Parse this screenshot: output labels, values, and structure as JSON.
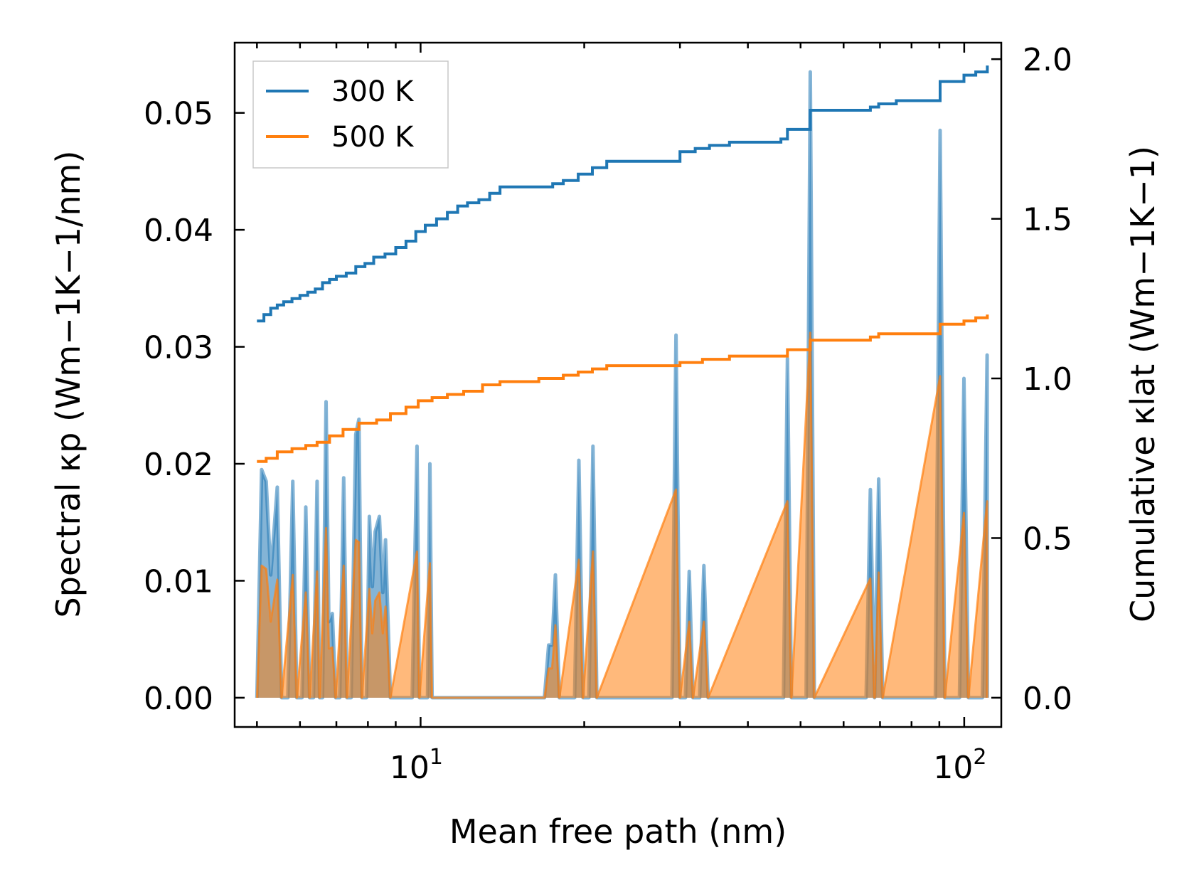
{
  "chart_data": {
    "type": "line",
    "xscale": "log",
    "xlabel": "Mean free path (nm)",
    "ylabel_left": "Spectral κp (Wm−1K−1/nm)",
    "ylabel_right": "Cumulative κlat (Wm−1K−1)",
    "xlim": [
      4.55,
      117
    ],
    "ylim_left": [
      -0.0025,
      0.056
    ],
    "ylim_right": [
      -0.0916,
      2.0516
    ],
    "x_ticks": [
      {
        "value": 10,
        "base": "10",
        "exp": "1"
      },
      {
        "value": 100,
        "base": "10",
        "exp": "2"
      }
    ],
    "y_left_ticks": [
      {
        "value": 0.0,
        "label": "0.00"
      },
      {
        "value": 0.01,
        "label": "0.01"
      },
      {
        "value": 0.02,
        "label": "0.02"
      },
      {
        "value": 0.03,
        "label": "0.03"
      },
      {
        "value": 0.04,
        "label": "0.04"
      },
      {
        "value": 0.05,
        "label": "0.05"
      }
    ],
    "y_right_ticks": [
      {
        "value": 0.0,
        "label": "0.0"
      },
      {
        "value": 0.5,
        "label": "0.5"
      },
      {
        "value": 1.0,
        "label": "1.0"
      },
      {
        "value": 1.5,
        "label": "1.5"
      },
      {
        "value": 2.0,
        "label": "2.0"
      }
    ],
    "legend": {
      "location": "upper left",
      "entries": [
        {
          "label": "300 K",
          "color": "#1f77b4"
        },
        {
          "label": "500 K",
          "color": "#ff7f0e"
        }
      ]
    },
    "spectral_series": [
      {
        "name": "300 K",
        "color": "#1f77b4",
        "points": [
          [
            5.0,
            0.0
          ],
          [
            5.1,
            0.0195
          ],
          [
            5.2,
            0.0185
          ],
          [
            5.3,
            0.0105
          ],
          [
            5.45,
            0.018
          ],
          [
            5.55,
            0.0
          ],
          [
            5.7,
            0.0
          ],
          [
            5.82,
            0.0185
          ],
          [
            5.92,
            0.0
          ],
          [
            6.05,
            0.0
          ],
          [
            6.15,
            0.0163
          ],
          [
            6.25,
            0.0
          ],
          [
            6.35,
            0.0
          ],
          [
            6.45,
            0.0185
          ],
          [
            6.52,
            0.0
          ],
          [
            6.6,
            0.0
          ],
          [
            6.7,
            0.0253
          ],
          [
            6.78,
            0.0065
          ],
          [
            6.88,
            0.0072
          ],
          [
            6.98,
            0.0
          ],
          [
            7.1,
            0.0
          ],
          [
            7.22,
            0.0188
          ],
          [
            7.32,
            0.0
          ],
          [
            7.45,
            0.0
          ],
          [
            7.6,
            0.0225
          ],
          [
            7.7,
            0.0238
          ],
          [
            7.8,
            0.0
          ],
          [
            7.95,
            0.0
          ],
          [
            8.05,
            0.0155
          ],
          [
            8.15,
            0.0095
          ],
          [
            8.25,
            0.0142
          ],
          [
            8.4,
            0.0155
          ],
          [
            8.52,
            0.009
          ],
          [
            8.62,
            0.0135
          ],
          [
            8.8,
            0.0
          ],
          [
            9.0,
            0.0
          ],
          [
            9.05,
            0.0
          ],
          [
            9.15,
            0.0
          ],
          [
            9.4,
            0.0
          ],
          [
            9.55,
            0.0
          ],
          [
            9.65,
            0.0
          ],
          [
            9.85,
            0.0215
          ],
          [
            9.95,
            0.0
          ],
          [
            10.05,
            0.0
          ],
          [
            10.1,
            0.0
          ],
          [
            10.3,
            0.0
          ],
          [
            10.4,
            0.02
          ],
          [
            10.5,
            0.0
          ],
          [
            10.75,
            0.0
          ],
          [
            10.9,
            0.0
          ],
          [
            11.0,
            0.0
          ],
          [
            11.2,
            0.0
          ],
          [
            11.35,
            0.0
          ],
          [
            11.5,
            0.0
          ],
          [
            11.6,
            0.0
          ],
          [
            11.8,
            0.0
          ],
          [
            11.95,
            0.0
          ],
          [
            12.1,
            0.0
          ],
          [
            12.3,
            0.0
          ],
          [
            12.4,
            0.0
          ],
          [
            12.55,
            0.0
          ],
          [
            12.65,
            0.0
          ],
          [
            12.9,
            0.0
          ],
          [
            13.1,
            0.0
          ],
          [
            13.2,
            0.0
          ],
          [
            13.4,
            0.0
          ],
          [
            13.6,
            0.0
          ],
          [
            13.8,
            0.0
          ],
          [
            14.0,
            0.0
          ],
          [
            14.2,
            0.0
          ],
          [
            14.4,
            0.0
          ],
          [
            16.9,
            0.0
          ],
          [
            17.2,
            0.0045
          ],
          [
            17.45,
            0.0045
          ],
          [
            17.7,
            0.0105
          ],
          [
            18.0,
            0.0
          ],
          [
            19.2,
            0.0
          ],
          [
            19.55,
            0.0203
          ],
          [
            19.9,
            0.0
          ],
          [
            20.4,
            0.0
          ],
          [
            20.75,
            0.0215
          ],
          [
            21.1,
            0.0
          ],
          [
            29.0,
            0.0
          ],
          [
            29.5,
            0.031
          ],
          [
            30.0,
            0.0
          ],
          [
            30.7,
            0.0
          ],
          [
            31.2,
            0.0108
          ],
          [
            31.7,
            0.0
          ],
          [
            32.6,
            0.0
          ],
          [
            33.2,
            0.0113
          ],
          [
            33.8,
            0.0
          ],
          [
            46.5,
            0.0
          ],
          [
            47.3,
            0.029
          ],
          [
            48.1,
            0.0
          ],
          [
            51.2,
            0.0
          ],
          [
            52.1,
            0.0535
          ],
          [
            53.0,
            0.0
          ],
          [
            66.0,
            0.0
          ],
          [
            67.2,
            0.0178
          ],
          [
            68.4,
            0.0
          ],
          [
            69.6,
            0.0187
          ],
          [
            70.8,
            0.0
          ],
          [
            88.5,
            0.0
          ],
          [
            90.3,
            0.0485
          ],
          [
            92.1,
            0.0
          ],
          [
            98.0,
            0.0
          ],
          [
            99.9,
            0.0273
          ],
          [
            101.8,
            0.0
          ],
          [
            108.0,
            0.0
          ],
          [
            110.2,
            0.0293
          ],
          [
            110.25,
            0.0
          ]
        ]
      },
      {
        "name": "500 K",
        "color": "#ff7f0e",
        "points": [
          [
            5.0,
            0.0
          ],
          [
            5.1,
            0.0113
          ],
          [
            5.2,
            0.011
          ],
          [
            5.3,
            0.0065
          ],
          [
            5.45,
            0.0101
          ],
          [
            5.55,
            0.0
          ],
          [
            5.82,
            0.0105
          ],
          [
            5.92,
            0.0
          ],
          [
            6.15,
            0.009
          ],
          [
            6.25,
            0.0
          ],
          [
            6.45,
            0.0108
          ],
          [
            6.52,
            0.0
          ],
          [
            6.7,
            0.0145
          ],
          [
            6.78,
            0.0042
          ],
          [
            6.88,
            0.0043
          ],
          [
            6.98,
            0.0
          ],
          [
            7.22,
            0.0113
          ],
          [
            7.32,
            0.0
          ],
          [
            7.6,
            0.0135
          ],
          [
            7.7,
            0.0133
          ],
          [
            7.8,
            0.0
          ],
          [
            8.05,
            0.0093
          ],
          [
            8.15,
            0.0055
          ],
          [
            8.25,
            0.0083
          ],
          [
            8.4,
            0.009
          ],
          [
            8.52,
            0.0055
          ],
          [
            8.62,
            0.0078
          ],
          [
            8.8,
            0.0
          ],
          [
            9.85,
            0.0125
          ],
          [
            9.95,
            0.0
          ],
          [
            10.4,
            0.0115
          ],
          [
            10.5,
            0.0
          ],
          [
            14.4,
            0.0
          ],
          [
            16.9,
            0.0
          ],
          [
            17.2,
            0.0025
          ],
          [
            17.45,
            0.0025
          ],
          [
            17.7,
            0.0062
          ],
          [
            18.0,
            0.0
          ],
          [
            19.55,
            0.0118
          ],
          [
            19.9,
            0.0
          ],
          [
            20.75,
            0.0125
          ],
          [
            21.1,
            0.0
          ],
          [
            29.5,
            0.0178
          ],
          [
            30.0,
            0.0
          ],
          [
            31.2,
            0.0065
          ],
          [
            31.7,
            0.0
          ],
          [
            33.2,
            0.0065
          ],
          [
            33.8,
            0.0
          ],
          [
            47.3,
            0.0168
          ],
          [
            48.1,
            0.0
          ],
          [
            52.1,
            0.0312
          ],
          [
            53.0,
            0.0
          ],
          [
            67.2,
            0.0102
          ],
          [
            68.4,
            0.0
          ],
          [
            69.6,
            0.0107
          ],
          [
            70.8,
            0.0
          ],
          [
            90.3,
            0.0275
          ],
          [
            92.1,
            0.0
          ],
          [
            99.9,
            0.0158
          ],
          [
            101.8,
            0.0
          ],
          [
            110.2,
            0.0168
          ],
          [
            110.25,
            0.0
          ]
        ]
      }
    ],
    "cumulative_series": [
      {
        "name": "300 K",
        "color": "#1f77b4",
        "points": [
          [
            5.0,
            1.18
          ],
          [
            5.15,
            1.2
          ],
          [
            5.3,
            1.22
          ],
          [
            5.45,
            1.23
          ],
          [
            5.6,
            1.24
          ],
          [
            5.8,
            1.25
          ],
          [
            6.0,
            1.26
          ],
          [
            6.2,
            1.27
          ],
          [
            6.4,
            1.28
          ],
          [
            6.6,
            1.3
          ],
          [
            6.8,
            1.31
          ],
          [
            7.0,
            1.32
          ],
          [
            7.3,
            1.33
          ],
          [
            7.6,
            1.35
          ],
          [
            7.9,
            1.36
          ],
          [
            8.2,
            1.38
          ],
          [
            8.6,
            1.39
          ],
          [
            9.0,
            1.41
          ],
          [
            9.4,
            1.43
          ],
          [
            9.8,
            1.46
          ],
          [
            10.2,
            1.48
          ],
          [
            10.7,
            1.5
          ],
          [
            11.2,
            1.52
          ],
          [
            11.7,
            1.54
          ],
          [
            12.2,
            1.55
          ],
          [
            12.8,
            1.56
          ],
          [
            13.4,
            1.58
          ],
          [
            14.0,
            1.6
          ],
          [
            16.5,
            1.6
          ],
          [
            17.5,
            1.61
          ],
          [
            18.3,
            1.62
          ],
          [
            19.5,
            1.64
          ],
          [
            20.7,
            1.66
          ],
          [
            22.0,
            1.68
          ],
          [
            29.0,
            1.68
          ],
          [
            30.0,
            1.71
          ],
          [
            32.0,
            1.72
          ],
          [
            34.0,
            1.73
          ],
          [
            37.0,
            1.74
          ],
          [
            46.0,
            1.75
          ],
          [
            47.3,
            1.78
          ],
          [
            51.0,
            1.78
          ],
          [
            52.1,
            1.84
          ],
          [
            55.0,
            1.84
          ],
          [
            66.0,
            1.84
          ],
          [
            67.2,
            1.85
          ],
          [
            69.6,
            1.86
          ],
          [
            75.0,
            1.87
          ],
          [
            88.0,
            1.87
          ],
          [
            90.3,
            1.93
          ],
          [
            96.0,
            1.93
          ],
          [
            99.9,
            1.95
          ],
          [
            105.0,
            1.96
          ],
          [
            110.3,
            1.98
          ]
        ]
      },
      {
        "name": "500 K",
        "color": "#ff7f0e",
        "points": [
          [
            5.0,
            0.74
          ],
          [
            5.2,
            0.75
          ],
          [
            5.45,
            0.77
          ],
          [
            5.8,
            0.78
          ],
          [
            6.15,
            0.79
          ],
          [
            6.45,
            0.8
          ],
          [
            6.8,
            0.82
          ],
          [
            7.2,
            0.84
          ],
          [
            7.7,
            0.86
          ],
          [
            8.3,
            0.87
          ],
          [
            8.8,
            0.89
          ],
          [
            9.4,
            0.91
          ],
          [
            9.9,
            0.93
          ],
          [
            10.5,
            0.94
          ],
          [
            11.2,
            0.95
          ],
          [
            12.0,
            0.96
          ],
          [
            13.0,
            0.98
          ],
          [
            14.0,
            0.99
          ],
          [
            16.5,
            1.0
          ],
          [
            17.5,
            1.0
          ],
          [
            18.3,
            1.01
          ],
          [
            19.5,
            1.02
          ],
          [
            20.7,
            1.03
          ],
          [
            22.0,
            1.04
          ],
          [
            29.0,
            1.04
          ],
          [
            30.0,
            1.05
          ],
          [
            33.0,
            1.06
          ],
          [
            37.0,
            1.07
          ],
          [
            46.0,
            1.07
          ],
          [
            47.3,
            1.09
          ],
          [
            51.0,
            1.09
          ],
          [
            52.1,
            1.12
          ],
          [
            66.0,
            1.12
          ],
          [
            67.2,
            1.13
          ],
          [
            69.6,
            1.14
          ],
          [
            88.0,
            1.14
          ],
          [
            90.3,
            1.17
          ],
          [
            96.0,
            1.17
          ],
          [
            99.9,
            1.18
          ],
          [
            105.0,
            1.19
          ],
          [
            110.3,
            1.2
          ]
        ]
      }
    ]
  }
}
